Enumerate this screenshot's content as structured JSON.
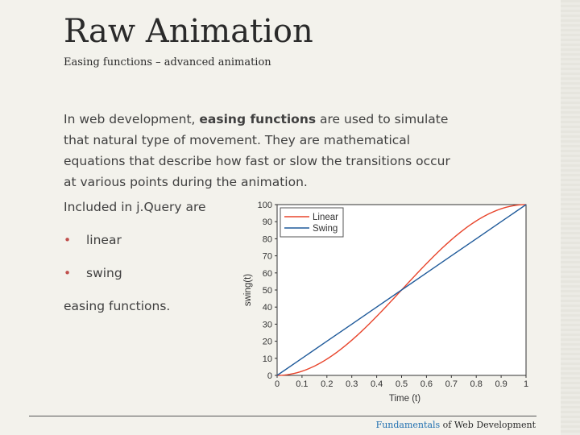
{
  "slide": {
    "title": "Raw Animation",
    "subtitle": "Easing functions – advanced animation",
    "intro_part1": "In web development, ",
    "intro_bold": "easing functions",
    "intro_part2": " are used to simulate that natural type of movement. They are mathematical equations that describe how fast or slow the transitions occur at various points during the animation.",
    "included_text": "Included in j.Query are",
    "bullets": [
      "linear",
      "swing"
    ],
    "closing_text": "easing functions.",
    "footer_accent": "Fundamentals",
    "footer_rest": " of Web Development"
  },
  "chart_data": {
    "type": "line",
    "xlabel": "Time (t)",
    "ylabel": "swing(t)",
    "xlim": [
      0,
      1
    ],
    "ylim": [
      0,
      100
    ],
    "x_ticks": [
      "0",
      "0.1",
      "0.2",
      "0.3",
      "0.4",
      "0.5",
      "0.6",
      "0.7",
      "0.8",
      "0.9",
      "1"
    ],
    "y_ticks": [
      "0",
      "10",
      "20",
      "30",
      "40",
      "50",
      "60",
      "70",
      "80",
      "90",
      "100"
    ],
    "legend_position": "top-left",
    "grid": false,
    "x": [
      0,
      0.1,
      0.2,
      0.3,
      0.4,
      0.5,
      0.6,
      0.7,
      0.8,
      0.9,
      1
    ],
    "series": [
      {
        "name": "Linear",
        "color": "#e8452c",
        "values": [
          0,
          2.4,
          9.5,
          20.6,
          34.5,
          50,
          65.5,
          79.4,
          90.5,
          97.6,
          100
        ]
      },
      {
        "name": "Swing",
        "color": "#1f5a9a",
        "values": [
          0,
          10,
          20,
          30,
          40,
          50,
          60,
          70,
          80,
          90,
          100
        ]
      }
    ]
  }
}
